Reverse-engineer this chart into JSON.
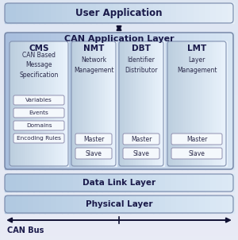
{
  "fig_bg": "#e2eaf5",
  "title_color": "#1a1a4a",
  "text_color": "#2a2a4a",
  "border_color": "#8090b0",
  "user_app_label": "User Application",
  "cal_label": "CAN Application Layer",
  "data_link_label": "Data Link Layer",
  "physical_label": "Physical Layer",
  "can_bus_label": "CAN Bus",
  "modules": [
    {
      "title": "CMS",
      "subtitle": "CAN Based\nMessage\nSpecification",
      "sub_items": [
        "Variables",
        "Events",
        "Domains",
        "Encoding Rules"
      ],
      "master_slave": false
    },
    {
      "title": "NMT",
      "subtitle": "Network\nManagement",
      "sub_items": [
        "Master",
        "Slave"
      ],
      "master_slave": true
    },
    {
      "title": "DBT",
      "subtitle": "Identifier\nDistributor",
      "sub_items": [
        "Master",
        "Slave"
      ],
      "master_slave": true
    },
    {
      "title": "LMT",
      "subtitle": "Layer\nManagement",
      "sub_items": [
        "Master",
        "Slave"
      ],
      "master_slave": true
    }
  ]
}
